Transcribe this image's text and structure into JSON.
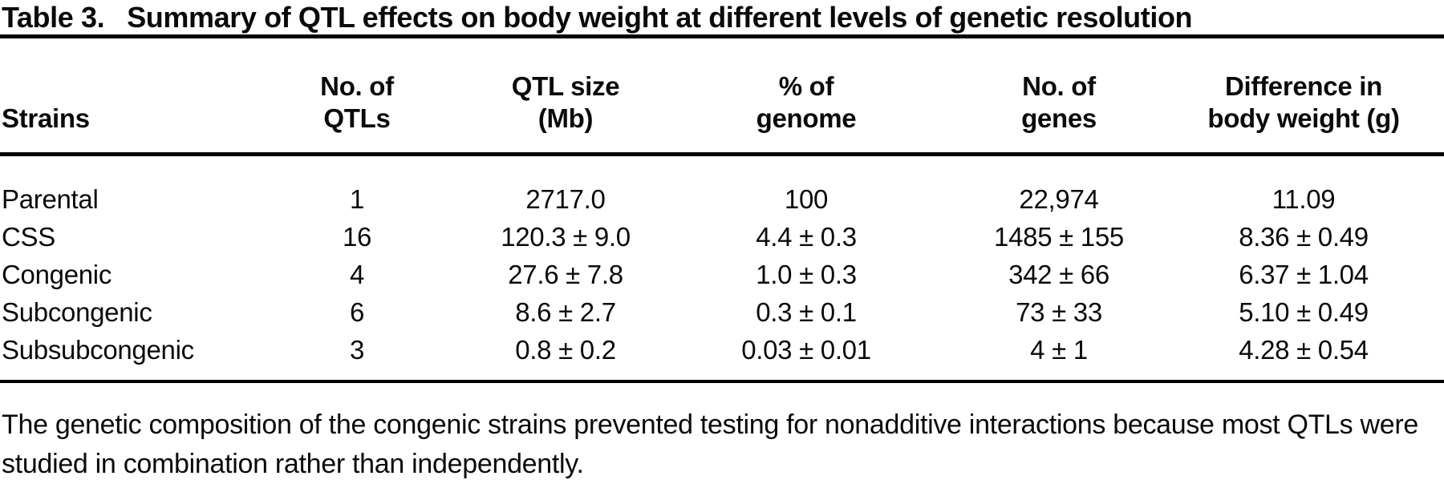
{
  "title": {
    "label": "Table 3.",
    "text": "Summary of QTL effects on body weight at different levels of genetic resolution"
  },
  "table": {
    "headers": [
      {
        "line1": "",
        "line2": "Strains"
      },
      {
        "line1": "No. of",
        "line2": "QTLs"
      },
      {
        "line1": "QTL size",
        "line2": "(Mb)"
      },
      {
        "line1": "% of",
        "line2": "genome"
      },
      {
        "line1": "No. of",
        "line2": "genes"
      },
      {
        "line1": "Difference in",
        "line2": "body weight (g)"
      }
    ],
    "rows": [
      {
        "strain": "Parental",
        "qtls": "1",
        "qtl_size": "2717.0",
        "pct_genome": "100",
        "genes": "22,974",
        "diff_bw": "11.09"
      },
      {
        "strain": "CSS",
        "qtls": "16",
        "qtl_size": "120.3 ± 9.0",
        "pct_genome": "4.4 ± 0.3",
        "genes": "1485 ± 155",
        "diff_bw": "8.36 ± 0.49"
      },
      {
        "strain": "Congenic",
        "qtls": "4",
        "qtl_size": "27.6 ± 7.8",
        "pct_genome": "1.0 ± 0.3",
        "genes": "342 ± 66",
        "diff_bw": "6.37 ± 1.04"
      },
      {
        "strain": "Subcongenic",
        "qtls": "6",
        "qtl_size": "8.6 ± 2.7",
        "pct_genome": "0.3 ± 0.1",
        "genes": "73 ± 33",
        "diff_bw": "5.10 ± 0.49"
      },
      {
        "strain": "Subsubcongenic",
        "qtls": "3",
        "qtl_size": "0.8 ± 0.2",
        "pct_genome": "0.03 ± 0.01",
        "genes": "4 ± 1",
        "diff_bw": "4.28 ± 0.54"
      }
    ]
  },
  "footnote": "The genetic composition of the congenic strains prevented testing for nonadditive interactions because most QTLs were studied in combination rather than independently.",
  "colors": {
    "text": "#0a0a0a",
    "background": "#ffffff",
    "rule": "#000000"
  }
}
